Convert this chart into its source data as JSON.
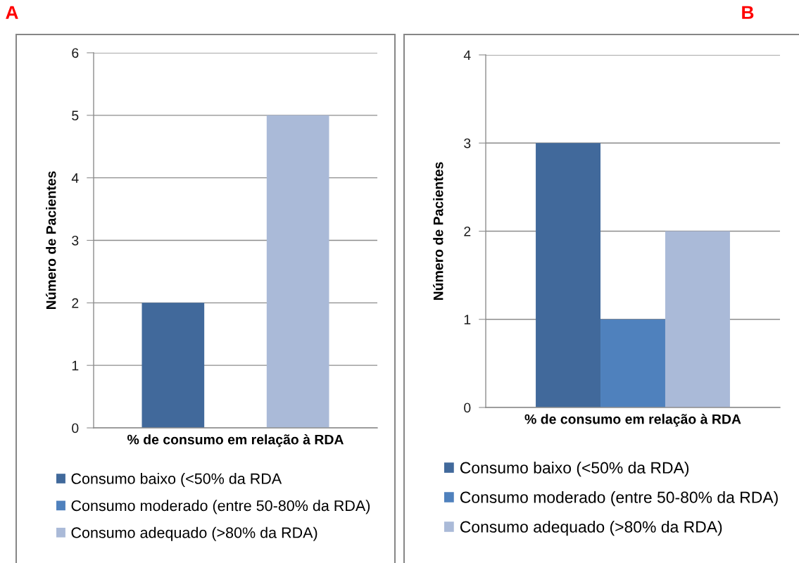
{
  "chart_data": [
    {
      "type": "bar",
      "title": "A",
      "xlabel": "% de consumo em relação à RDA",
      "ylabel": "Número de Pacientes",
      "categories": [
        null
      ],
      "series": [
        {
          "name": "Consumo baixo (<50% da RDA",
          "color": "#41699b",
          "values": [
            2
          ]
        },
        {
          "name": "Consumo moderado (entre 50-80% da RDA)",
          "color": "#4f81bd",
          "values": [
            0
          ]
        },
        {
          "name": "Consumo adequado (>80% da RDA)",
          "color": "#aabad8",
          "values": [
            5
          ]
        }
      ],
      "ylim": [
        0,
        6
      ],
      "yticks": [
        0,
        1,
        2,
        3,
        4,
        5,
        6
      ],
      "grid": "y",
      "legend": "bottom"
    },
    {
      "type": "bar",
      "title": "B",
      "xlabel": "% de consumo em relação à RDA",
      "ylabel": "Número de Pacientes",
      "categories": [
        null
      ],
      "series": [
        {
          "name": "Consumo baixo (<50% da RDA)",
          "color": "#41699b",
          "values": [
            3
          ]
        },
        {
          "name": "Consumo moderado (entre 50-80% da RDA)",
          "color": "#4f81bd",
          "values": [
            1
          ]
        },
        {
          "name": "Consumo adequado (>80% da RDA)",
          "color": "#aabad8",
          "values": [
            2
          ]
        }
      ],
      "ylim": [
        0,
        4
      ],
      "yticks": [
        0,
        1,
        2,
        3,
        4
      ],
      "grid": "y",
      "legend": "bottom"
    }
  ]
}
